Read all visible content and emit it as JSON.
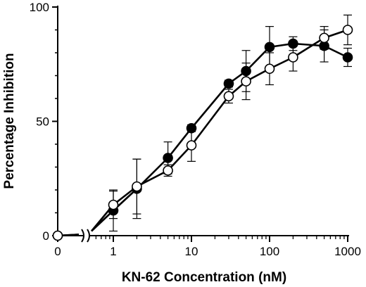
{
  "chart_data": {
    "type": "line",
    "xlabel": "KN-62 Concentration (nM)",
    "ylabel": "Percentage Inhibition",
    "x_scale": "log",
    "x_axis_break": true,
    "xlim": [
      0.6,
      1000
    ],
    "ylim": [
      0,
      100
    ],
    "x_ticks": [
      {
        "value": 0,
        "label": "0"
      },
      {
        "value": 1,
        "label": "1"
      },
      {
        "value": 10,
        "label": "10"
      },
      {
        "value": 100,
        "label": "100"
      },
      {
        "value": 1000,
        "label": "1000"
      }
    ],
    "y_ticks": [
      {
        "value": 0,
        "label": "0"
      },
      {
        "value": 50,
        "label": "50"
      },
      {
        "value": 100,
        "label": "100"
      }
    ],
    "grid": false,
    "legend": "none",
    "series": [
      {
        "marker": "filled-circle",
        "color": "#000000",
        "points": [
          {
            "x": 0,
            "y": 0,
            "err": 0
          },
          {
            "x": 1,
            "y": 11,
            "err": 9
          },
          {
            "x": 2,
            "y": 20.5,
            "err": 13
          },
          {
            "x": 5,
            "y": 34,
            "err": 7
          },
          {
            "x": 10,
            "y": 47,
            "err": 1.5
          },
          {
            "x": 30,
            "y": 66.5,
            "err": 1.5
          },
          {
            "x": 50,
            "y": 72,
            "err": 9
          },
          {
            "x": 100,
            "y": 82.5,
            "err": 9
          },
          {
            "x": 200,
            "y": 84,
            "err": 3
          },
          {
            "x": 500,
            "y": 83,
            "err": 7
          },
          {
            "x": 1000,
            "y": 78,
            "err": 4
          }
        ]
      },
      {
        "marker": "open-circle",
        "color": "#000000",
        "points": [
          {
            "x": 0,
            "y": 0,
            "err": 0
          },
          {
            "x": 1,
            "y": 13.5,
            "err": 6
          },
          {
            "x": 2,
            "y": 21.5,
            "err": 12
          },
          {
            "x": 5,
            "y": 28.5,
            "err": 2.5
          },
          {
            "x": 10,
            "y": 39.5,
            "err": 7
          },
          {
            "x": 30,
            "y": 61,
            "err": 3
          },
          {
            "x": 50,
            "y": 67.5,
            "err": 8
          },
          {
            "x": 100,
            "y": 73,
            "err": 7
          },
          {
            "x": 200,
            "y": 78,
            "err": 6
          },
          {
            "x": 500,
            "y": 86.5,
            "err": 5
          },
          {
            "x": 1000,
            "y": 90,
            "err": 6.5
          }
        ]
      }
    ]
  }
}
